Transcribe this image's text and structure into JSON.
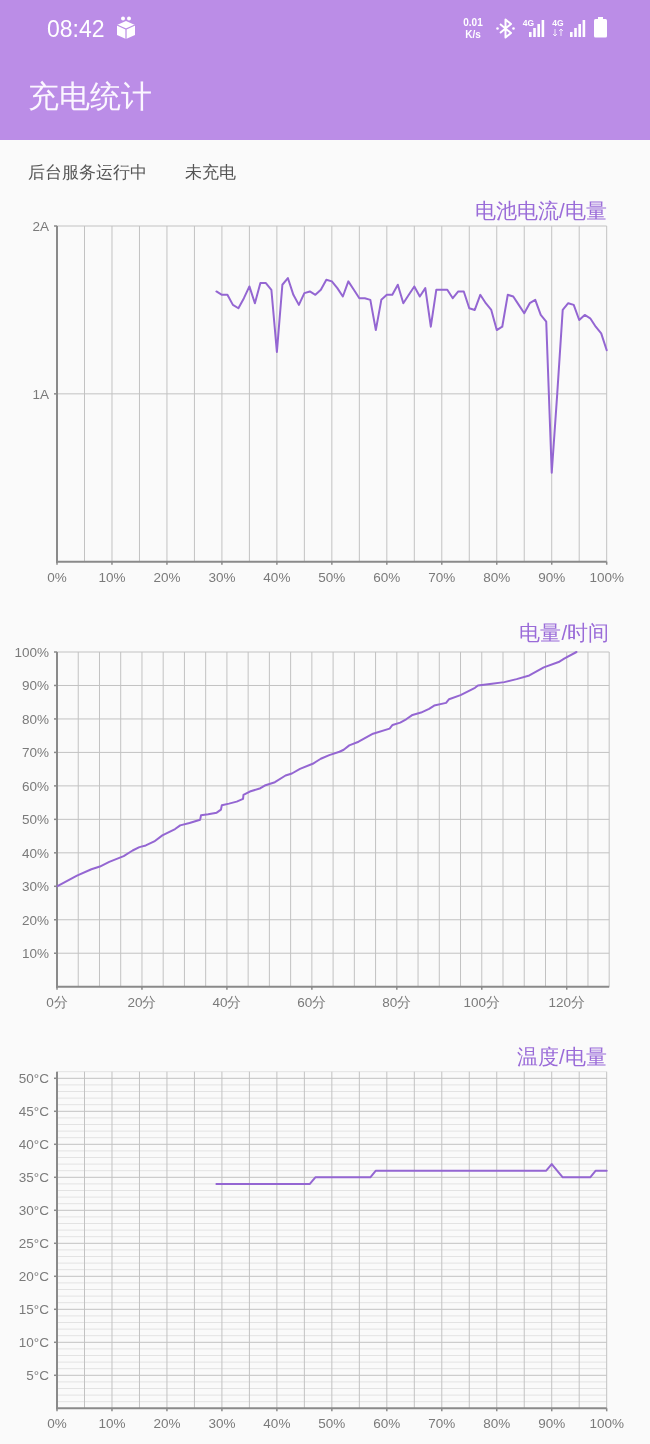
{
  "chart_data": [
    {
      "type": "other",
      "title": "充电统计",
      "annotations": [
        "08:42",
        "0.01",
        "K/s",
        "4G",
        "4G",
        "后台服务运行中",
        "未充电"
      ]
    },
    {
      "type": "line",
      "title": "电池电流/电量",
      "x": [
        29,
        30,
        31,
        32,
        33,
        34,
        35,
        36,
        37,
        38,
        39,
        40,
        41,
        42,
        43,
        44,
        45,
        46,
        47,
        48,
        49,
        50,
        51,
        52,
        53,
        54,
        55,
        56,
        57,
        58,
        59,
        60,
        61,
        62,
        63,
        64,
        65,
        66,
        67,
        68,
        69,
        70,
        71,
        72,
        73,
        74,
        75,
        76,
        77,
        78,
        79,
        80,
        81,
        82,
        83,
        84,
        85,
        86,
        87,
        88,
        89,
        90,
        91,
        92,
        93,
        94,
        95,
        96,
        97,
        98,
        99,
        100
      ],
      "series": [
        {
          "color": "#9466d2",
          "values": [
            1.61,
            1.59,
            1.59,
            1.53,
            1.51,
            1.57,
            1.64,
            1.54,
            1.66,
            1.66,
            1.62,
            1.25,
            1.65,
            1.69,
            1.59,
            1.53,
            1.6,
            1.61,
            1.59,
            1.62,
            1.68,
            1.67,
            1.63,
            1.58,
            1.67,
            1.62,
            1.57,
            1.57,
            1.56,
            1.38,
            1.56,
            1.59,
            1.59,
            1.65,
            1.54,
            1.59,
            1.64,
            1.58,
            1.63,
            1.4,
            1.62,
            1.62,
            1.62,
            1.57,
            1.61,
            1.61,
            1.51,
            1.5,
            1.59,
            1.54,
            1.5,
            1.38,
            1.4,
            1.59,
            1.58,
            1.53,
            1.48,
            1.54,
            1.56,
            1.47,
            1.43,
            0.53,
            1.0,
            1.5,
            1.54,
            1.53,
            1.44,
            1.47,
            1.45,
            1.4,
            1.36,
            1.26
          ]
        }
      ],
      "xlim": [
        0,
        100
      ],
      "ylim": [
        0,
        2
      ],
      "xticks": [
        {
          "value": 0,
          "label": "0%"
        },
        {
          "value": 5,
          "label": null
        },
        {
          "value": 10,
          "label": "10%"
        },
        {
          "value": 15,
          "label": null
        },
        {
          "value": 20,
          "label": "20%"
        },
        {
          "value": 25,
          "label": null
        },
        {
          "value": 30,
          "label": "30%"
        },
        {
          "value": 35,
          "label": null
        },
        {
          "value": 40,
          "label": "40%"
        },
        {
          "value": 45,
          "label": null
        },
        {
          "value": 50,
          "label": "50%"
        },
        {
          "value": 55,
          "label": null
        },
        {
          "value": 60,
          "label": "60%"
        },
        {
          "value": 65,
          "label": null
        },
        {
          "value": 70,
          "label": "70%"
        },
        {
          "value": 75,
          "label": null
        },
        {
          "value": 80,
          "label": "80%"
        },
        {
          "value": 85,
          "label": null
        },
        {
          "value": 90,
          "label": "90%"
        },
        {
          "value": 95,
          "label": null
        },
        {
          "value": 100,
          "label": "100%"
        }
      ],
      "yticks": [
        {
          "value": 1,
          "label": "1A"
        },
        {
          "value": 2,
          "label": "2A"
        }
      ],
      "grid": true
    },
    {
      "type": "line",
      "title": "电量/时间",
      "x": [
        0,
        4.7,
        8.1,
        10.1,
        12.3,
        15.7,
        17.8,
        19.4,
        20.9,
        22.9,
        24.8,
        27.8,
        29,
        31.2,
        33.7,
        33.9,
        35.6,
        37.6,
        38.6,
        38.8,
        40.5,
        42.3,
        43.8,
        43.9,
        45.4,
        47.9,
        48.9,
        51.3,
        53.8,
        55.3,
        57.2,
        60.2,
        62.1,
        64.1,
        66.5,
        67.5,
        68.8,
        71,
        74.4,
        78.3,
        79,
        80.8,
        82.2,
        83.7,
        85.7,
        87.6,
        88.8,
        91.6,
        92.3,
        95,
        98.4,
        99.1,
        102.4,
        105.3,
        108.2,
        111.2,
        114.6,
        118.1,
        119.5,
        122.3
      ],
      "series": [
        {
          "color": "#9466d2",
          "values": [
            30,
            33.2,
            35.1,
            35.9,
            37.3,
            39,
            40.7,
            41.7,
            42.2,
            43.4,
            45.2,
            47.1,
            48.2,
            48.9,
            49.9,
            51.2,
            51.5,
            52,
            52.9,
            54.2,
            54.7,
            55.3,
            56.1,
            57.3,
            58.3,
            59.3,
            60.1,
            61.1,
            63.1,
            63.7,
            65.1,
            66.6,
            68.1,
            69.2,
            70.2,
            70.8,
            72.1,
            73.2,
            75.6,
            77.1,
            78.2,
            78.9,
            79.9,
            81.2,
            81.9,
            83,
            84,
            84.8,
            85.9,
            87.1,
            89.3,
            90,
            90.5,
            91,
            91.9,
            93,
            95.4,
            97,
            98.1,
            100
          ]
        }
      ],
      "xlim": [
        0,
        130
      ],
      "ylim": [
        0,
        100
      ],
      "xticks": [
        {
          "value": 0,
          "label": "0分"
        },
        {
          "value": 5,
          "label": null
        },
        {
          "value": 10,
          "label": null
        },
        {
          "value": 15,
          "label": null
        },
        {
          "value": 20,
          "label": "20分"
        },
        {
          "value": 25,
          "label": null
        },
        {
          "value": 30,
          "label": null
        },
        {
          "value": 35,
          "label": null
        },
        {
          "value": 40,
          "label": "40分"
        },
        {
          "value": 45,
          "label": null
        },
        {
          "value": 50,
          "label": null
        },
        {
          "value": 55,
          "label": null
        },
        {
          "value": 60,
          "label": "60分"
        },
        {
          "value": 65,
          "label": null
        },
        {
          "value": 70,
          "label": null
        },
        {
          "value": 75,
          "label": null
        },
        {
          "value": 80,
          "label": "80分"
        },
        {
          "value": 85,
          "label": null
        },
        {
          "value": 90,
          "label": null
        },
        {
          "value": 95,
          "label": null
        },
        {
          "value": 100,
          "label": "100分"
        },
        {
          "value": 105,
          "label": null
        },
        {
          "value": 110,
          "label": null
        },
        {
          "value": 115,
          "label": null
        },
        {
          "value": 120,
          "label": "120分"
        },
        {
          "value": 125,
          "label": null
        },
        {
          "value": 130,
          "label": null
        }
      ],
      "yticks": [
        {
          "value": 10,
          "label": "10%"
        },
        {
          "value": 20,
          "label": "20%"
        },
        {
          "value": 30,
          "label": "30%"
        },
        {
          "value": 40,
          "label": "40%"
        },
        {
          "value": 50,
          "label": "50%"
        },
        {
          "value": 60,
          "label": "60%"
        },
        {
          "value": 70,
          "label": "70%"
        },
        {
          "value": 80,
          "label": "80%"
        },
        {
          "value": 90,
          "label": "90%"
        },
        {
          "value": 100,
          "label": "100%"
        }
      ],
      "grid": true
    },
    {
      "type": "line",
      "title": "温度/电量",
      "x": [
        29,
        46,
        47,
        57,
        58,
        89,
        90,
        92,
        97,
        98,
        100
      ],
      "series": [
        {
          "color": "#9466d2",
          "values": [
            34,
            34,
            35,
            35,
            36,
            36,
            37,
            35,
            35,
            36,
            36
          ]
        }
      ],
      "xlim": [
        0,
        100
      ],
      "ylim": [
        0,
        51
      ],
      "xticks": [
        {
          "value": 0,
          "label": "0%"
        },
        {
          "value": 5,
          "label": null
        },
        {
          "value": 10,
          "label": "10%"
        },
        {
          "value": 15,
          "label": null
        },
        {
          "value": 20,
          "label": "20%"
        },
        {
          "value": 25,
          "label": null
        },
        {
          "value": 30,
          "label": "30%"
        },
        {
          "value": 35,
          "label": null
        },
        {
          "value": 40,
          "label": "40%"
        },
        {
          "value": 45,
          "label": null
        },
        {
          "value": 50,
          "label": "50%"
        },
        {
          "value": 55,
          "label": null
        },
        {
          "value": 60,
          "label": "60%"
        },
        {
          "value": 65,
          "label": null
        },
        {
          "value": 70,
          "label": "70%"
        },
        {
          "value": 75,
          "label": null
        },
        {
          "value": 80,
          "label": "80%"
        },
        {
          "value": 85,
          "label": null
        },
        {
          "value": 90,
          "label": "90%"
        },
        {
          "value": 95,
          "label": null
        },
        {
          "value": 100,
          "label": "100%"
        }
      ],
      "yticks": [
        {
          "value": 1,
          "label": null
        },
        {
          "value": 2,
          "label": null
        },
        {
          "value": 3,
          "label": null
        },
        {
          "value": 4,
          "label": null
        },
        {
          "value": 5,
          "label": "5°C"
        },
        {
          "value": 6,
          "label": null
        },
        {
          "value": 7,
          "label": null
        },
        {
          "value": 8,
          "label": null
        },
        {
          "value": 9,
          "label": null
        },
        {
          "value": 10,
          "label": "10°C"
        },
        {
          "value": 11,
          "label": null
        },
        {
          "value": 12,
          "label": null
        },
        {
          "value": 13,
          "label": null
        },
        {
          "value": 14,
          "label": null
        },
        {
          "value": 15,
          "label": "15°C"
        },
        {
          "value": 16,
          "label": null
        },
        {
          "value": 17,
          "label": null
        },
        {
          "value": 18,
          "label": null
        },
        {
          "value": 19,
          "label": null
        },
        {
          "value": 20,
          "label": "20°C"
        },
        {
          "value": 21,
          "label": null
        },
        {
          "value": 22,
          "label": null
        },
        {
          "value": 23,
          "label": null
        },
        {
          "value": 24,
          "label": null
        },
        {
          "value": 25,
          "label": "25°C"
        },
        {
          "value": 26,
          "label": null
        },
        {
          "value": 27,
          "label": null
        },
        {
          "value": 28,
          "label": null
        },
        {
          "value": 29,
          "label": null
        },
        {
          "value": 30,
          "label": "30°C"
        },
        {
          "value": 31,
          "label": null
        },
        {
          "value": 32,
          "label": null
        },
        {
          "value": 33,
          "label": null
        },
        {
          "value": 34,
          "label": null
        },
        {
          "value": 35,
          "label": "35°C"
        },
        {
          "value": 36,
          "label": null
        },
        {
          "value": 37,
          "label": null
        },
        {
          "value": 38,
          "label": null
        },
        {
          "value": 39,
          "label": null
        },
        {
          "value": 40,
          "label": "40°C"
        },
        {
          "value": 41,
          "label": null
        },
        {
          "value": 42,
          "label": null
        },
        {
          "value": 43,
          "label": null
        },
        {
          "value": 44,
          "label": null
        },
        {
          "value": 45,
          "label": "45°C"
        },
        {
          "value": 46,
          "label": null
        },
        {
          "value": 47,
          "label": null
        },
        {
          "value": 48,
          "label": null
        },
        {
          "value": 49,
          "label": null
        },
        {
          "value": 50,
          "label": "50°C"
        },
        {
          "value": 51,
          "label": null
        }
      ],
      "grid": true
    }
  ]
}
